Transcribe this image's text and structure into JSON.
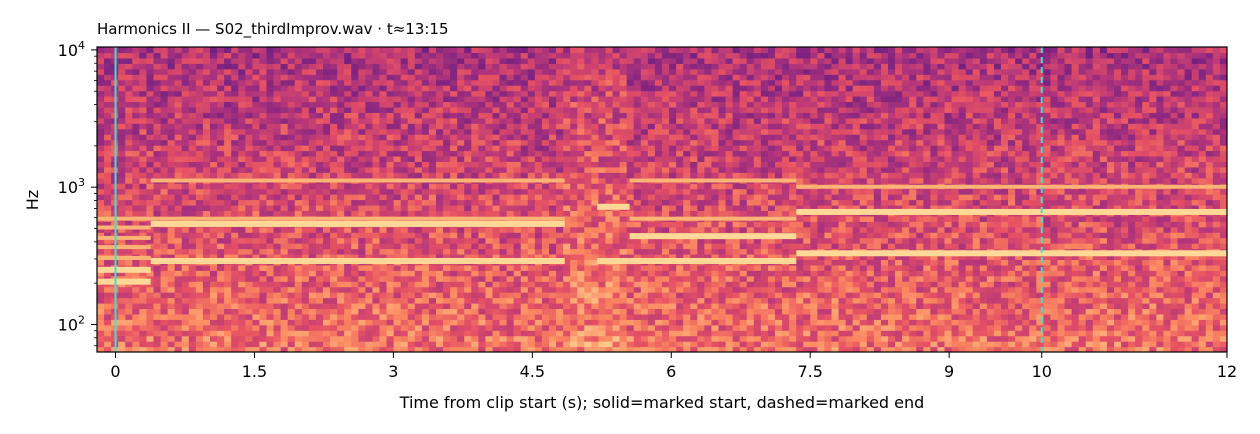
{
  "chart_data": {
    "type": "heatmap",
    "title": "Harmonics II  —  S02_thirdImprov.wav · t≈13:15",
    "xlabel": "Time from clip start (s); solid=marked start, dashed=marked end",
    "ylabel": "Hz",
    "xlim": [
      -0.2,
      12.0
    ],
    "ylim": [
      63,
      10500
    ],
    "y_scale": "log",
    "x_ticks": [
      0,
      1.5,
      3,
      4.5,
      6,
      7.5,
      9,
      10,
      12
    ],
    "x_tick_labels": [
      "0",
      "1.5",
      "3",
      "4.5",
      "6",
      "7.5",
      "9",
      "10",
      "12"
    ],
    "y_ticks": [
      {
        "value": 100,
        "base": "10",
        "exp": "2"
      },
      {
        "value": 1000,
        "base": "10",
        "exp": "3"
      },
      {
        "value": 10000,
        "base": "10",
        "exp": "4"
      }
    ],
    "colormap": "magma",
    "markers": [
      {
        "label": "marked start",
        "x": 0.0,
        "style": "solid",
        "color": "#40e0d0"
      },
      {
        "label": "marked end",
        "x": 10.0,
        "style": "dashed",
        "color": "#40e0d0"
      }
    ],
    "segments": [
      {
        "start": -0.2,
        "end": 0.38,
        "harmonics_hz": [
          205,
          250,
          300,
          360,
          420,
          500,
          580
        ]
      },
      {
        "start": 0.38,
        "end": 4.85,
        "harmonics_hz": [
          290,
          540,
          580,
          1100
        ]
      },
      {
        "start": 4.85,
        "end": 5.2,
        "harmonics_hz": []
      },
      {
        "start": 5.2,
        "end": 5.55,
        "harmonics_hz": [
          290,
          720
        ]
      },
      {
        "start": 5.55,
        "end": 7.35,
        "harmonics_hz": [
          290,
          440,
          580,
          1100
        ]
      },
      {
        "start": 7.35,
        "end": 12.0,
        "harmonics_hz": [
          330,
          660,
          990
        ]
      }
    ]
  }
}
